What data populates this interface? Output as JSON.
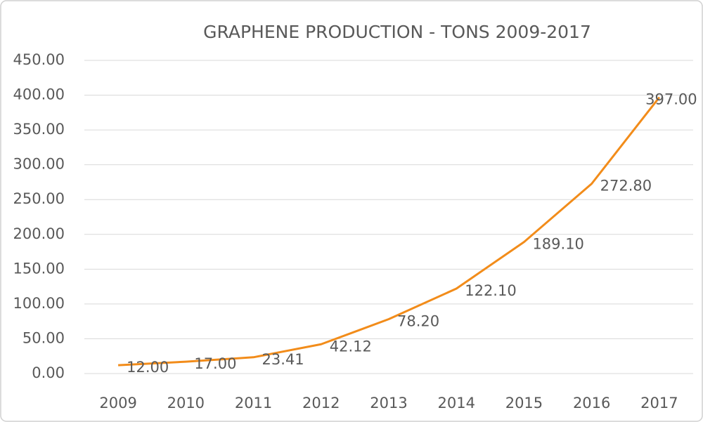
{
  "chart_data": {
    "type": "line",
    "title": "GRAPHENE PRODUCTION - TONS 2009-2017",
    "categories": [
      "2009",
      "2010",
      "2011",
      "2012",
      "2013",
      "2014",
      "2015",
      "2016",
      "2017"
    ],
    "values": [
      12,
      17,
      23.41,
      42.12,
      78.2,
      122.1,
      189.1,
      272.8,
      397
    ],
    "value_labels": [
      "12.00",
      "17.00",
      "23.41",
      "42.12",
      "78.20",
      "122.10",
      "189.10",
      "272.80",
      "397.00"
    ],
    "color": "#f28c1a",
    "ylim": [
      0,
      450
    ],
    "yticks": [
      {
        "value": 0,
        "label": "0.00"
      },
      {
        "value": 50,
        "label": "50.00"
      },
      {
        "value": 100,
        "label": "100.00"
      },
      {
        "value": 150,
        "label": "150.00"
      },
      {
        "value": 200,
        "label": "200.00"
      },
      {
        "value": 250,
        "label": "250.00"
      },
      {
        "value": 300,
        "label": "300.00"
      },
      {
        "value": 350,
        "label": "350.00"
      },
      {
        "value": 400,
        "label": "400.00"
      },
      {
        "value": 450,
        "label": "450.00"
      }
    ],
    "grid": true
  }
}
